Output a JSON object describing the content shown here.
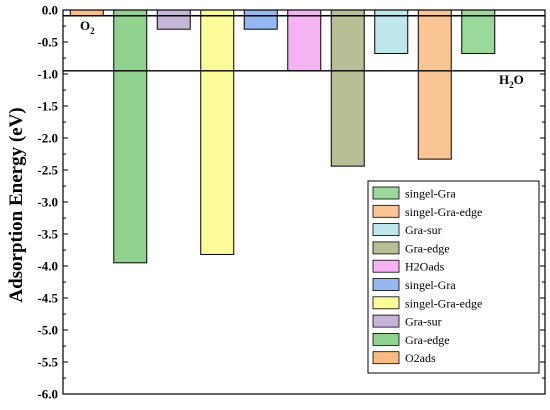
{
  "chart_data": {
    "type": "bar",
    "ylabel": "Adsorption Energy (eV)",
    "ylim": [
      -6.0,
      0.0
    ],
    "yticks": [
      0.0,
      -0.5,
      -1.0,
      -1.5,
      -2.0,
      -2.5,
      -3.0,
      -3.5,
      -4.0,
      -4.5,
      -5.0,
      -5.5,
      -6.0
    ],
    "ytick_labels": [
      "0.0",
      "-0.5",
      "-1.0",
      "-1.5",
      "-2.0",
      "-2.5",
      "-3.0",
      "-3.5",
      "-4.0",
      "-4.5",
      "-5.0",
      "-5.5",
      "-6.0"
    ],
    "grid": false,
    "legend_position": "bottom-right",
    "reference_lines": [
      {
        "label_main": "O",
        "label_sub": "2",
        "y": -0.09
      },
      {
        "label_main": "H",
        "label_sub": "2",
        "label_tail": "O",
        "y": -0.95
      }
    ],
    "series": [
      {
        "name": "singel-Gra",
        "color": "#9bd99b",
        "value": -0.68
      },
      {
        "name": "singel-Gra-edge",
        "color": "#f9c594",
        "value": -2.33
      },
      {
        "name": "Gra-sur",
        "color": "#bfe7ee",
        "value": -0.68
      },
      {
        "name": "Gra-edge",
        "color": "#b9be96",
        "value": -2.44
      },
      {
        "name": "H2Oads",
        "color": "#f6b3f3",
        "value": -0.95
      },
      {
        "name": "singel-Gra",
        "color": "#96b8f0",
        "value": -0.3
      },
      {
        "name": "singel-Gra-edge",
        "color": "#fbfb99",
        "value": -3.82
      },
      {
        "name": "Gra-sur",
        "color": "#c5b6d8",
        "value": -0.3
      },
      {
        "name": "Gra-edge",
        "color": "#8fd38f",
        "value": -3.95
      },
      {
        "name": "O2ads",
        "color": "#f9bd84",
        "value": -0.09
      }
    ],
    "bar_order": [
      9,
      8,
      7,
      6,
      5,
      4,
      3,
      2,
      1,
      0
    ]
  }
}
